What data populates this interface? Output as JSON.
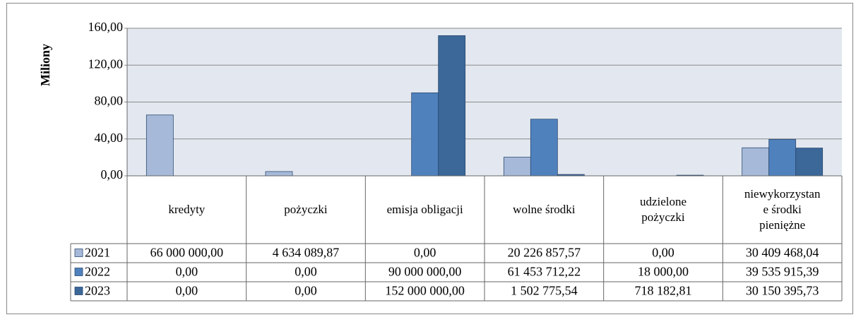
{
  "chart_data": {
    "type": "bar",
    "y_label": "Miliony",
    "categories": [
      "kredyty",
      "pożyczki",
      "emisja obligacji",
      "wolne środki",
      "udzielone pożyczki",
      "niewykorzystane środki pieniężne"
    ],
    "series": [
      {
        "name": "2021",
        "color": "#a7b9d9",
        "values": [
          66,
          4.63408987,
          0,
          20.22685757,
          0,
          30.40946804
        ],
        "value_labels": [
          "66 000 000,00",
          "4 634 089,87",
          "0,00",
          "20 226 857,57",
          "0,00",
          "30 409 468,04"
        ]
      },
      {
        "name": "2022",
        "color": "#4f81bd",
        "values": [
          0,
          0,
          90,
          61.45371222,
          0.018,
          39.53591539
        ],
        "value_labels": [
          "0,00",
          "0,00",
          "90 000 000,00",
          "61 453 712,22",
          "18 000,00",
          "39 535 915,39"
        ]
      },
      {
        "name": "2023",
        "color": "#3b6799",
        "values": [
          0,
          0,
          152,
          1.50277554,
          0.71818281,
          30.15039573
        ],
        "value_labels": [
          "0,00",
          "0,00",
          "152 000 000,00",
          "1 502 775,54",
          "718 182,81",
          "30 150 395,73"
        ]
      }
    ],
    "ylim": [
      0,
      160
    ],
    "yticks": [
      {
        "value": 0,
        "label": "0,00"
      },
      {
        "value": 40,
        "label": "40,00"
      },
      {
        "value": 80,
        "label": "80,00"
      },
      {
        "value": 120,
        "label": "120,00"
      },
      {
        "value": 160,
        "label": "160,00"
      }
    ],
    "grid": true
  }
}
